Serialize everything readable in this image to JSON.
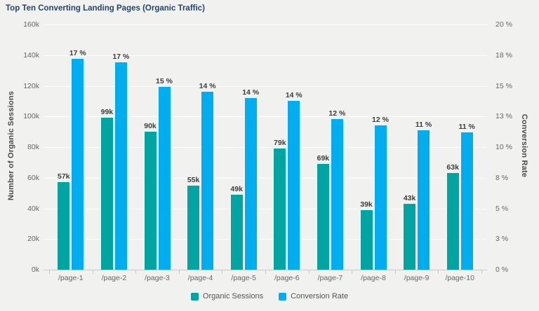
{
  "chart_data": {
    "type": "bar",
    "title": "Top Ten Converting Landing Pages (Organic Traffic)",
    "categories": [
      "/page-1",
      "/page-2",
      "/page-3",
      "/page-4",
      "/page-5",
      "/page-6",
      "/page-7",
      "/page-8",
      "/page-9",
      "/page-10"
    ],
    "series": [
      {
        "name": "Organic Sessions",
        "axis": "left",
        "color": "#00a5a2",
        "values": [
          57000,
          99000,
          90000,
          55000,
          49000,
          79000,
          69000,
          39000,
          43000,
          63000
        ],
        "labels": [
          "57k",
          "99k",
          "90k",
          "55k",
          "49k",
          "79k",
          "69k",
          "39k",
          "43k",
          "63k"
        ]
      },
      {
        "name": "Conversion Rate",
        "axis": "right",
        "color": "#00adee",
        "values": [
          17.2,
          16.9,
          14.9,
          14.5,
          14.0,
          13.8,
          12.3,
          11.8,
          11.4,
          11.2
        ],
        "labels": [
          "17 %",
          "17 %",
          "15 %",
          "14 %",
          "14 %",
          "14 %",
          "12 %",
          "12 %",
          "11 %",
          "11 %"
        ]
      }
    ],
    "ylabel_left": "Number of Organic Sessions",
    "ylabel_right": "Conversion Rate",
    "ylim_left": [
      0,
      160000
    ],
    "ylim_right": [
      0,
      20
    ],
    "left_ticks_top_to_bottom": [
      "160k",
      "140k",
      "120k",
      "100k",
      "80k",
      "60k",
      "40k",
      "20k",
      "0k"
    ],
    "right_ticks_top_to_bottom": [
      "20 %",
      "18 %",
      "15 %",
      "13 %",
      "10 %",
      "8 %",
      "5 %",
      "3 %",
      "0 %"
    ],
    "grid": true,
    "legend_position": "bottom"
  },
  "colors": {
    "background": "#f1f1ef",
    "sessions_bar": "#00a5a2",
    "rate_bar": "#00adee",
    "title_text": "#22456e",
    "axis_line": "#c8c8c8",
    "tick_text": "#666666",
    "data_label_text": "#3d3d3d"
  }
}
